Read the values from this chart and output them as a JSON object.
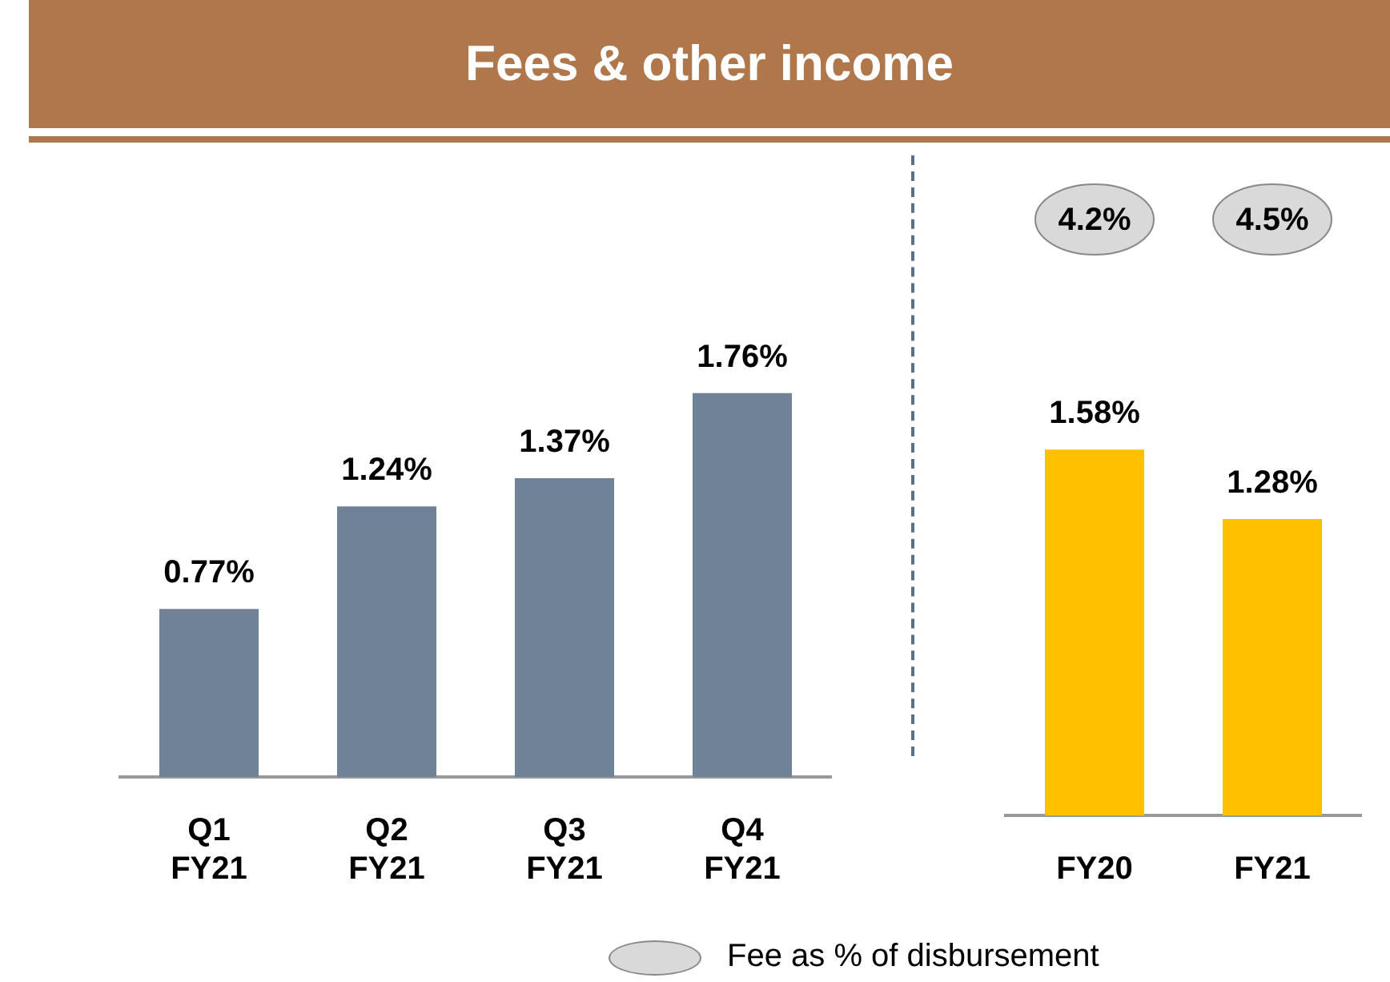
{
  "chart_data": [
    {
      "type": "bar",
      "title": "Fees & other income",
      "categories": [
        "Q1 FY21",
        "Q2 FY21",
        "Q3 FY21",
        "Q4 FY21"
      ],
      "values": [
        0.77,
        1.24,
        1.37,
        1.76
      ],
      "value_labels": [
        "0.77%",
        "1.24%",
        "1.37%",
        "1.76%"
      ],
      "color": "#6f8297",
      "grid": false,
      "legend": false,
      "tick_labels": "x"
    },
    {
      "type": "bar",
      "categories": [
        "FY20",
        "FY21"
      ],
      "values": [
        1.58,
        1.28
      ],
      "value_labels": [
        "1.58%",
        "1.28%"
      ],
      "color": "#ffc000",
      "grid": false,
      "legend": false,
      "tick_labels": "x",
      "annotations": [
        "4.2%",
        "4.5%",
        "Fee as % of disbursement"
      ]
    }
  ]
}
